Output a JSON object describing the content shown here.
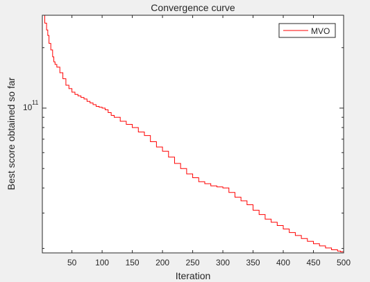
{
  "chart_data": {
    "type": "line",
    "title": "Convergence curve",
    "xlabel": "Iteration",
    "ylabel": "Best score obtained so far",
    "xlim": [
      1,
      500
    ],
    "ylim": [
      19000000000,
      290000000000
    ],
    "yscale": "log",
    "grid": false,
    "legend_position": "top-right",
    "x_ticks": [
      50,
      100,
      150,
      200,
      250,
      300,
      350,
      400,
      450,
      500
    ],
    "x_tick_labels": [
      "50",
      "100",
      "150",
      "200",
      "250",
      "300",
      "350",
      "400",
      "450",
      "500"
    ],
    "y_major_ticks": [
      100000000000
    ],
    "y_tick_base": "10",
    "y_tick_exponent": "11",
    "y_minor_ticks": [
      20000000000,
      30000000000,
      40000000000,
      50000000000,
      60000000000,
      70000000000,
      80000000000,
      90000000000,
      200000000000
    ],
    "series": [
      {
        "name": "MVO",
        "color": "#ff0000",
        "x": [
          1,
          5,
          8,
          10,
          12,
          15,
          18,
          20,
          22,
          25,
          30,
          35,
          40,
          45,
          50,
          55,
          60,
          65,
          70,
          75,
          80,
          85,
          90,
          95,
          100,
          105,
          110,
          115,
          120,
          130,
          140,
          150,
          160,
          170,
          180,
          190,
          200,
          210,
          220,
          230,
          240,
          250,
          260,
          270,
          280,
          290,
          300,
          310,
          320,
          330,
          340,
          350,
          360,
          370,
          380,
          390,
          400,
          410,
          420,
          430,
          440,
          450,
          460,
          470,
          480,
          490,
          495,
          500
        ],
        "y": [
          290000000000,
          265000000000,
          245000000000,
          230000000000,
          210000000000,
          195000000000,
          180000000000,
          170000000000,
          165000000000,
          160000000000,
          150000000000,
          140000000000,
          130000000000,
          125000000000,
          120000000000,
          117000000000,
          115000000000,
          113000000000,
          111000000000,
          108000000000,
          106000000000,
          104000000000,
          102000000000,
          101000000000,
          100000000000,
          98000000000,
          95000000000,
          92000000000,
          90000000000,
          86000000000,
          83000000000,
          80000000000,
          76000000000,
          73000000000,
          68000000000,
          64000000000,
          61000000000,
          57000000000,
          53000000000,
          50000000000,
          47000000000,
          45000000000,
          43000000000,
          42000000000,
          41000000000,
          40500000000,
          40000000000,
          38000000000,
          36000000000,
          34500000000,
          33000000000,
          31000000000,
          29500000000,
          28000000000,
          27000000000,
          26000000000,
          25000000000,
          24000000000,
          23200000000,
          22400000000,
          21700000000,
          21100000000,
          20600000000,
          20100000000,
          19700000000,
          19400000000,
          19250000000,
          19100000000
        ]
      }
    ]
  }
}
